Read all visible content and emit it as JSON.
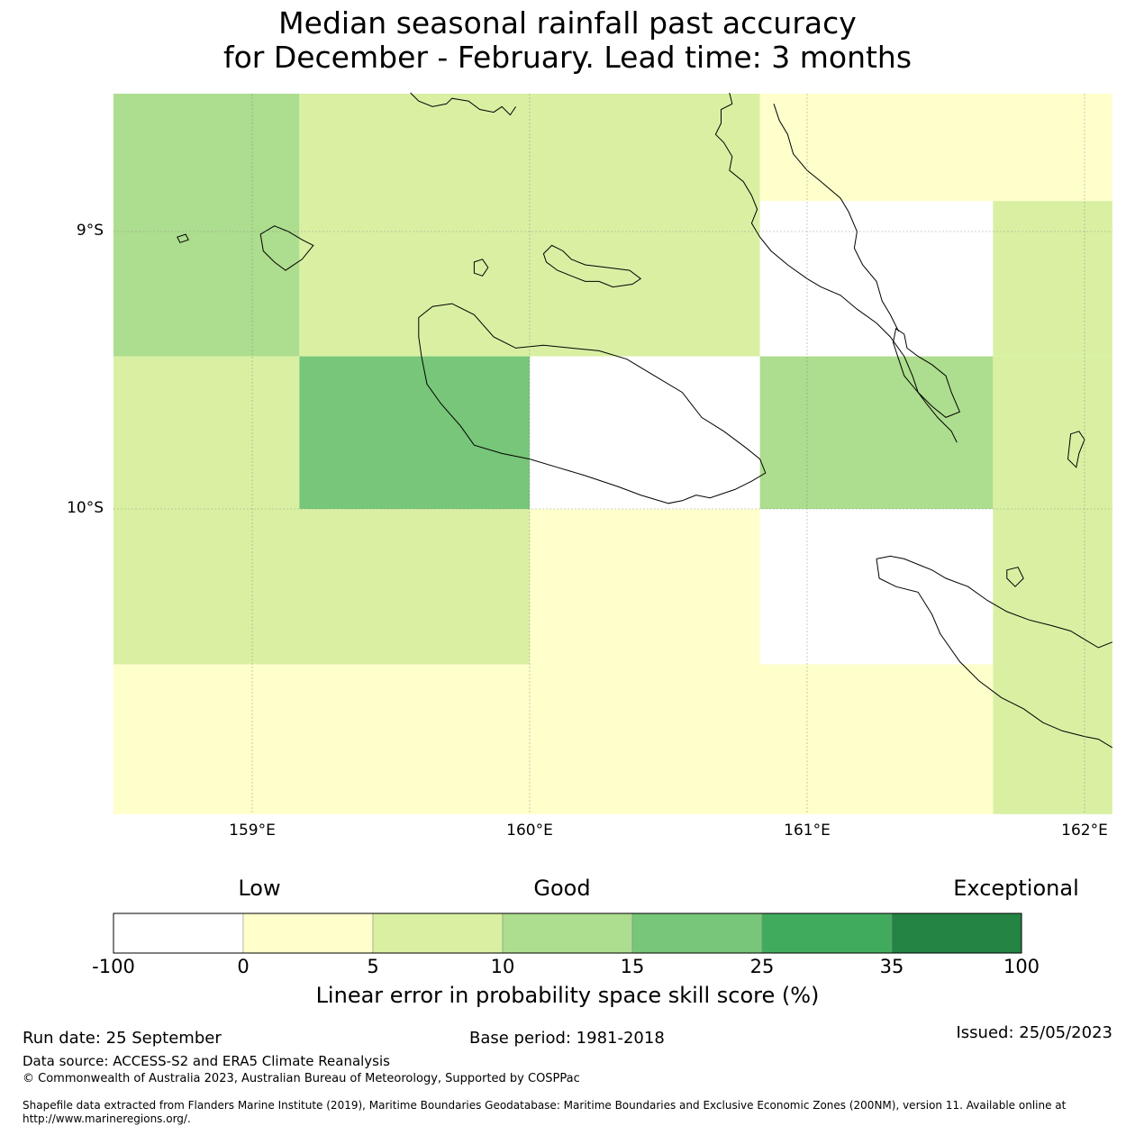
{
  "title": {
    "line1": "Median seasonal rainfall past accuracy",
    "line2": "for December - February. Lead time: 3 months"
  },
  "map": {
    "lon_range": [
      158.5,
      162.1
    ],
    "lat_range": [
      -8.5,
      -11.1
    ],
    "lon_ticks": [
      {
        "value": 159,
        "label": "159°E"
      },
      {
        "value": 160,
        "label": "160°E"
      },
      {
        "value": 161,
        "label": "161°E"
      },
      {
        "value": 162,
        "label": "162°E"
      }
    ],
    "lat_ticks": [
      {
        "value": -9,
        "label": "9°S"
      },
      {
        "value": -10,
        "label": "10°S"
      }
    ],
    "colors": {
      "white": "#ffffff",
      "yellow": "#ffffcc",
      "lightgreen": "#d9f0a3",
      "green1": "#addd8e",
      "green2": "#78c679",
      "green3": "#41ab5d",
      "green4": "#238443"
    },
    "grid_cells": [
      {
        "lon": [
          158.5,
          159.17
        ],
        "lat": [
          -8.5,
          -9.45
        ],
        "color": "green1"
      },
      {
        "lon": [
          159.17,
          160.83
        ],
        "lat": [
          -8.5,
          -9.45
        ],
        "color": "lightgreen"
      },
      {
        "lon": [
          160.83,
          162.1
        ],
        "lat": [
          -8.5,
          -8.89
        ],
        "color": "yellow"
      },
      {
        "lon": [
          160.83,
          161.67
        ],
        "lat": [
          -8.89,
          -9.45
        ],
        "color": "white"
      },
      {
        "lon": [
          161.67,
          162.1
        ],
        "lat": [
          -8.89,
          -9.45
        ],
        "color": "lightgreen"
      },
      {
        "lon": [
          158.5,
          159.17
        ],
        "lat": [
          -9.45,
          -10.0
        ],
        "color": "lightgreen"
      },
      {
        "lon": [
          159.17,
          160.0
        ],
        "lat": [
          -9.45,
          -10.0
        ],
        "color": "green2"
      },
      {
        "lon": [
          160.0,
          160.83
        ],
        "lat": [
          -9.45,
          -10.0
        ],
        "color": "white"
      },
      {
        "lon": [
          160.83,
          161.67
        ],
        "lat": [
          -9.45,
          -10.0
        ],
        "color": "green1"
      },
      {
        "lon": [
          161.67,
          162.1
        ],
        "lat": [
          -9.45,
          -10.0
        ],
        "color": "lightgreen"
      },
      {
        "lon": [
          158.5,
          160.0
        ],
        "lat": [
          -10.0,
          -10.56
        ],
        "color": "lightgreen"
      },
      {
        "lon": [
          160.0,
          160.83
        ],
        "lat": [
          -10.0,
          -10.56
        ],
        "color": "yellow"
      },
      {
        "lon": [
          160.83,
          161.67
        ],
        "lat": [
          -10.0,
          -10.56
        ],
        "color": "white"
      },
      {
        "lon": [
          161.67,
          162.1
        ],
        "lat": [
          -10.0,
          -10.56
        ],
        "color": "lightgreen"
      },
      {
        "lon": [
          158.5,
          161.67
        ],
        "lat": [
          -10.56,
          -11.1
        ],
        "color": "yellow"
      },
      {
        "lon": [
          161.67,
          162.1
        ],
        "lat": [
          -10.56,
          -11.1
        ],
        "color": "lightgreen"
      }
    ],
    "coastlines": [
      {
        "name": "isabel-coast",
        "closed": false,
        "points": [
          [
            159.57,
            -8.5
          ],
          [
            159.6,
            -8.53
          ],
          [
            159.65,
            -8.55
          ],
          [
            159.7,
            -8.54
          ],
          [
            159.72,
            -8.52
          ],
          [
            159.78,
            -8.53
          ],
          [
            159.82,
            -8.56
          ],
          [
            159.87,
            -8.57
          ],
          [
            159.9,
            -8.55
          ],
          [
            159.93,
            -8.58
          ],
          [
            159.95,
            -8.55
          ]
        ]
      },
      {
        "name": "isabel-main",
        "closed": false,
        "points": [
          [
            160.72,
            -8.5
          ],
          [
            160.73,
            -8.54
          ],
          [
            160.69,
            -8.56
          ],
          [
            160.69,
            -8.61
          ],
          [
            160.67,
            -8.65
          ],
          [
            160.7,
            -8.68
          ],
          [
            160.73,
            -8.73
          ],
          [
            160.72,
            -8.78
          ],
          [
            160.77,
            -8.82
          ],
          [
            160.8,
            -8.87
          ],
          [
            160.82,
            -8.92
          ],
          [
            160.8,
            -8.97
          ],
          [
            160.83,
            -9.02
          ],
          [
            160.87,
            -9.07
          ],
          [
            160.93,
            -9.12
          ],
          [
            161.0,
            -9.17
          ],
          [
            161.05,
            -9.2
          ],
          [
            161.12,
            -9.23
          ],
          [
            161.18,
            -9.28
          ],
          [
            161.25,
            -9.33
          ],
          [
            161.3,
            -9.38
          ],
          [
            161.35,
            -9.45
          ],
          [
            161.38,
            -9.52
          ],
          [
            161.4,
            -9.58
          ],
          [
            161.43,
            -9.62
          ],
          [
            161.47,
            -9.67
          ],
          [
            161.52,
            -9.72
          ],
          [
            161.54,
            -9.76
          ]
        ]
      },
      {
        "name": "isabel-east",
        "closed": false,
        "points": [
          [
            160.88,
            -8.54
          ],
          [
            160.9,
            -8.6
          ],
          [
            160.93,
            -8.65
          ],
          [
            160.95,
            -8.72
          ],
          [
            161.0,
            -8.78
          ],
          [
            161.05,
            -8.82
          ],
          [
            161.12,
            -8.88
          ],
          [
            161.15,
            -8.93
          ],
          [
            161.18,
            -9.0
          ],
          [
            161.17,
            -9.06
          ],
          [
            161.2,
            -9.12
          ],
          [
            161.25,
            -9.18
          ],
          [
            161.27,
            -9.25
          ],
          [
            161.3,
            -9.3
          ],
          [
            161.33,
            -9.36
          ]
        ]
      },
      {
        "name": "malaita-small",
        "closed": true,
        "points": [
          [
            161.32,
            -9.35
          ],
          [
            161.35,
            -9.37
          ],
          [
            161.36,
            -9.42
          ],
          [
            161.4,
            -9.45
          ],
          [
            161.45,
            -9.48
          ],
          [
            161.5,
            -9.52
          ],
          [
            161.52,
            -9.58
          ],
          [
            161.55,
            -9.65
          ],
          [
            161.5,
            -9.67
          ],
          [
            161.45,
            -9.63
          ],
          [
            161.4,
            -9.58
          ],
          [
            161.35,
            -9.52
          ],
          [
            161.33,
            -9.46
          ],
          [
            161.31,
            -9.4
          ]
        ]
      },
      {
        "name": "nggela-island",
        "closed": true,
        "points": [
          [
            160.05,
            -9.08
          ],
          [
            160.08,
            -9.05
          ],
          [
            160.12,
            -9.07
          ],
          [
            160.15,
            -9.1
          ],
          [
            160.2,
            -9.12
          ],
          [
            160.28,
            -9.13
          ],
          [
            160.36,
            -9.14
          ],
          [
            160.4,
            -9.17
          ],
          [
            160.37,
            -9.19
          ],
          [
            160.3,
            -9.2
          ],
          [
            160.25,
            -9.18
          ],
          [
            160.2,
            -9.18
          ],
          [
            160.15,
            -9.16
          ],
          [
            160.1,
            -9.14
          ],
          [
            160.06,
            -9.11
          ]
        ]
      },
      {
        "name": "savo-island",
        "closed": true,
        "points": [
          [
            159.8,
            -9.11
          ],
          [
            159.83,
            -9.1
          ],
          [
            159.85,
            -9.13
          ],
          [
            159.83,
            -9.16
          ],
          [
            159.8,
            -9.15
          ]
        ]
      },
      {
        "name": "russell-islands",
        "closed": true,
        "points": [
          [
            159.03,
            -9.01
          ],
          [
            159.08,
            -8.98
          ],
          [
            159.13,
            -9.0
          ],
          [
            159.18,
            -9.03
          ],
          [
            159.22,
            -9.05
          ],
          [
            159.18,
            -9.1
          ],
          [
            159.12,
            -9.14
          ],
          [
            159.08,
            -9.11
          ],
          [
            159.04,
            -9.07
          ]
        ]
      },
      {
        "name": "small-islet-west",
        "closed": true,
        "points": [
          [
            158.73,
            -9.02
          ],
          [
            158.76,
            -9.01
          ],
          [
            158.77,
            -9.03
          ],
          [
            158.74,
            -9.04
          ]
        ]
      },
      {
        "name": "guadalcanal",
        "closed": true,
        "points": [
          [
            159.6,
            -9.31
          ],
          [
            159.65,
            -9.27
          ],
          [
            159.72,
            -9.26
          ],
          [
            159.8,
            -9.3
          ],
          [
            159.87,
            -9.38
          ],
          [
            159.95,
            -9.42
          ],
          [
            160.05,
            -9.41
          ],
          [
            160.15,
            -9.42
          ],
          [
            160.25,
            -9.43
          ],
          [
            160.35,
            -9.46
          ],
          [
            160.45,
            -9.52
          ],
          [
            160.55,
            -9.58
          ],
          [
            160.62,
            -9.67
          ],
          [
            160.7,
            -9.72
          ],
          [
            160.78,
            -9.78
          ],
          [
            160.83,
            -9.82
          ],
          [
            160.85,
            -9.87
          ],
          [
            160.8,
            -9.9
          ],
          [
            160.74,
            -9.93
          ],
          [
            160.65,
            -9.96
          ],
          [
            160.6,
            -9.95
          ],
          [
            160.55,
            -9.97
          ],
          [
            160.5,
            -9.98
          ],
          [
            160.4,
            -9.95
          ],
          [
            160.32,
            -9.92
          ],
          [
            160.2,
            -9.88
          ],
          [
            160.1,
            -9.85
          ],
          [
            160.0,
            -9.82
          ],
          [
            159.9,
            -9.8
          ],
          [
            159.8,
            -9.77
          ],
          [
            159.75,
            -9.7
          ],
          [
            159.68,
            -9.62
          ],
          [
            159.63,
            -9.55
          ],
          [
            159.61,
            -9.45
          ],
          [
            159.6,
            -9.38
          ]
        ]
      },
      {
        "name": "malaita-south-isle",
        "closed": true,
        "points": [
          [
            161.95,
            -9.73
          ],
          [
            161.98,
            -9.72
          ],
          [
            162.0,
            -9.75
          ],
          [
            161.98,
            -9.8
          ],
          [
            161.97,
            -9.85
          ],
          [
            161.94,
            -9.82
          ]
        ]
      },
      {
        "name": "makira-island",
        "closed": false,
        "points": [
          [
            161.25,
            -10.18
          ],
          [
            161.3,
            -10.17
          ],
          [
            161.35,
            -10.18
          ],
          [
            161.4,
            -10.2
          ],
          [
            161.45,
            -10.22
          ],
          [
            161.5,
            -10.25
          ],
          [
            161.58,
            -10.28
          ],
          [
            161.65,
            -10.33
          ],
          [
            161.72,
            -10.37
          ],
          [
            161.8,
            -10.4
          ],
          [
            161.88,
            -10.42
          ],
          [
            161.95,
            -10.44
          ],
          [
            162.0,
            -10.47
          ],
          [
            162.05,
            -10.5
          ],
          [
            162.1,
            -10.48
          ]
        ]
      },
      {
        "name": "makira-south",
        "closed": false,
        "points": [
          [
            161.25,
            -10.18
          ],
          [
            161.26,
            -10.25
          ],
          [
            161.32,
            -10.28
          ],
          [
            161.4,
            -10.3
          ],
          [
            161.45,
            -10.38
          ],
          [
            161.48,
            -10.45
          ],
          [
            161.55,
            -10.55
          ],
          [
            161.62,
            -10.62
          ],
          [
            161.7,
            -10.68
          ],
          [
            161.78,
            -10.72
          ],
          [
            161.85,
            -10.77
          ],
          [
            161.92,
            -10.8
          ],
          [
            162.0,
            -10.82
          ],
          [
            162.05,
            -10.83
          ],
          [
            162.1,
            -10.86
          ]
        ]
      },
      {
        "name": "ugi-island",
        "closed": true,
        "points": [
          [
            161.72,
            -10.22
          ],
          [
            161.76,
            -10.21
          ],
          [
            161.78,
            -10.25
          ],
          [
            161.75,
            -10.28
          ],
          [
            161.72,
            -10.25
          ]
        ]
      }
    ]
  },
  "colorbar": {
    "categories": {
      "low": "Low",
      "good": "Good",
      "exceptional": "Exceptional"
    },
    "bins": [
      {
        "color": "white"
      },
      {
        "color": "yellow"
      },
      {
        "color": "lightgreen"
      },
      {
        "color": "green1"
      },
      {
        "color": "green2"
      },
      {
        "color": "green3"
      },
      {
        "color": "green4"
      }
    ],
    "tick_labels": [
      "-100",
      "0",
      "5",
      "10",
      "15",
      "25",
      "35",
      "100"
    ],
    "caption": "Linear error in probability space skill score (%)"
  },
  "footer": {
    "run_date": "Run date: 25 September",
    "base_period": "Base period: 1981-2018",
    "issued": "Issued: 25/05/2023",
    "data_source": "Data source: ACCESS-S2 and ERA5 Climate Reanalysis",
    "copyright": "© Commonwealth of Australia 2023, Australian Bureau of Meteorology, Supported by COSPPac",
    "shapefile": "Shapefile data extracted from Flanders Marine Institute (2019), Maritime Boundaries Geodatabase: Maritime Boundaries and Exclusive Economic Zones (200NM), version 11. Available online at http://www.marineregions.org/."
  }
}
